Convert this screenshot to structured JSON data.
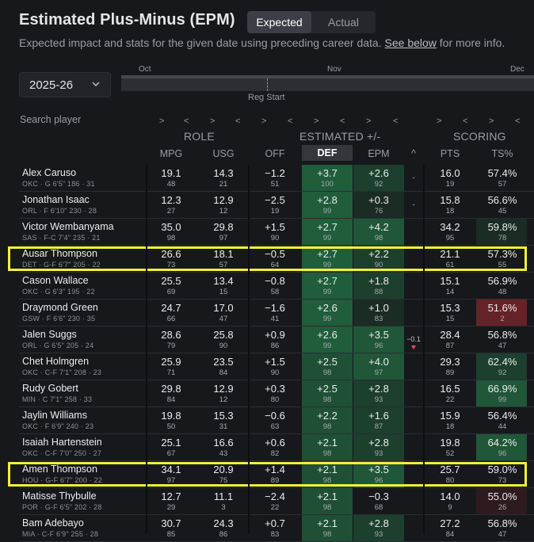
{
  "header": {
    "title": "Estimated Plus-Minus (EPM)",
    "toggle": [
      "Expected",
      "Actual"
    ],
    "subtitle_pre": "Expected impact and stats for the given date using preceding career data. ",
    "subtitle_link": "See below",
    "subtitle_post": " for more info."
  },
  "season": "2025-26",
  "timeline": {
    "months": [
      "Oct",
      "Nov",
      "Dec"
    ],
    "marker": "Reg Start"
  },
  "search_placeholder": "Search player",
  "groups": {
    "role": "ROLE",
    "est": "ESTIMATED +/-",
    "scoring": "SCORING"
  },
  "columns": {
    "mpg": "MPG",
    "usg": "USG",
    "off": "OFF",
    "def": "DEF",
    "epm": "EPM",
    "chg": "^",
    "pts": "PTS",
    "ts": "TS%"
  },
  "nav": {
    "next": ">",
    "prev": "<"
  },
  "rows": [
    {
      "name": "Alex Caruso",
      "info": "OKC · G 6'5\" 186 · 31",
      "mpg": "19.1",
      "mpg_r": "48",
      "usg": "14.3",
      "usg_r": "21",
      "off": "−1.2",
      "off_r": "51",
      "def": "+3.7",
      "def_r": "100",
      "epm": "+2.6",
      "epm_r": "92",
      "chg": "-",
      "chg_dir": "",
      "pts": "16.0",
      "pts_r": "19",
      "ts": "57.4%",
      "ts_r": "57"
    },
    {
      "name": "Jonathan Isaac",
      "info": "ORL · F 6'10\" 230 · 28",
      "mpg": "12.3",
      "mpg_r": "27",
      "usg": "12.9",
      "usg_r": "12",
      "off": "−2.5",
      "off_r": "19",
      "def": "+2.8",
      "def_r": "99",
      "epm": "+0.3",
      "epm_r": "76",
      "chg": "-",
      "chg_dir": "",
      "pts": "15.8",
      "pts_r": "18",
      "ts": "56.6%",
      "ts_r": "45"
    },
    {
      "name": "Victor Wembanyama",
      "info": "SAS · F-C 7'4\" 235 · 21",
      "mpg": "35.0",
      "mpg_r": "98",
      "usg": "29.8",
      "usg_r": "97",
      "off": "+1.5",
      "off_r": "90",
      "def": "+2.7",
      "def_r": "99",
      "epm": "+4.2",
      "epm_r": "98",
      "chg": "",
      "chg_dir": "",
      "pts": "34.2",
      "pts_r": "95",
      "ts": "59.8%",
      "ts_r": "78"
    },
    {
      "name": "Ausar Thompson",
      "info": "DET · G-F 6'7\" 205 · 22",
      "mpg": "26.6",
      "mpg_r": "73",
      "usg": "18.1",
      "usg_r": "57",
      "off": "−0.5",
      "off_r": "64",
      "def": "+2.7",
      "def_r": "99",
      "epm": "+2.2",
      "epm_r": "90",
      "chg": "",
      "chg_dir": "",
      "pts": "21.1",
      "pts_r": "61",
      "ts": "57.3%",
      "ts_r": "55"
    },
    {
      "name": "Cason Wallace",
      "info": "OKC · G 6'3\" 195 · 22",
      "mpg": "25.5",
      "mpg_r": "69",
      "usg": "13.4",
      "usg_r": "15",
      "off": "−0.8",
      "off_r": "58",
      "def": "+2.7",
      "def_r": "99",
      "epm": "+1.8",
      "epm_r": "88",
      "chg": "",
      "chg_dir": "",
      "pts": "15.1",
      "pts_r": "14",
      "ts": "56.9%",
      "ts_r": "48"
    },
    {
      "name": "Draymond Green",
      "info": "GSW · F 6'6\" 230 · 35",
      "mpg": "24.7",
      "mpg_r": "66",
      "usg": "17.0",
      "usg_r": "47",
      "off": "−1.6",
      "off_r": "41",
      "def": "+2.6",
      "def_r": "99",
      "epm": "+1.0",
      "epm_r": "83",
      "chg": "",
      "chg_dir": "",
      "pts": "15.3",
      "pts_r": "15",
      "ts": "51.6%",
      "ts_r": "2"
    },
    {
      "name": "Jalen Suggs",
      "info": "ORL · G 6'5\" 205 · 24",
      "mpg": "28.6",
      "mpg_r": "79",
      "usg": "25.8",
      "usg_r": "90",
      "off": "+0.9",
      "off_r": "86",
      "def": "+2.6",
      "def_r": "99",
      "epm": "+3.5",
      "epm_r": "96",
      "chg": "−0.1",
      "chg_dir": "down",
      "pts": "28.4",
      "pts_r": "87",
      "ts": "56.8%",
      "ts_r": "47"
    },
    {
      "name": "Chet Holmgren",
      "info": "OKC · C-F 7'1\" 208 · 23",
      "mpg": "25.9",
      "mpg_r": "71",
      "usg": "23.5",
      "usg_r": "84",
      "off": "+1.5",
      "off_r": "90",
      "def": "+2.5",
      "def_r": "98",
      "epm": "+4.0",
      "epm_r": "97",
      "chg": "",
      "chg_dir": "",
      "pts": "29.3",
      "pts_r": "89",
      "ts": "62.4%",
      "ts_r": "92"
    },
    {
      "name": "Rudy Gobert",
      "info": "MIN · C 7'1\" 258 · 33",
      "mpg": "29.8",
      "mpg_r": "84",
      "usg": "12.9",
      "usg_r": "12",
      "off": "+0.3",
      "off_r": "80",
      "def": "+2.5",
      "def_r": "98",
      "epm": "+2.8",
      "epm_r": "93",
      "chg": "",
      "chg_dir": "",
      "pts": "16.5",
      "pts_r": "22",
      "ts": "66.9%",
      "ts_r": "99"
    },
    {
      "name": "Jaylin Williams",
      "info": "OKC · F 6'9\" 240 · 23",
      "mpg": "19.8",
      "mpg_r": "50",
      "usg": "15.3",
      "usg_r": "31",
      "off": "−0.6",
      "off_r": "63",
      "def": "+2.2",
      "def_r": "98",
      "epm": "+1.6",
      "epm_r": "87",
      "chg": "",
      "chg_dir": "",
      "pts": "15.9",
      "pts_r": "18",
      "ts": "56.4%",
      "ts_r": "44"
    },
    {
      "name": "Isaiah Hartenstein",
      "info": "OKC · C-F 7'0\" 250 · 27",
      "mpg": "25.1",
      "mpg_r": "67",
      "usg": "16.6",
      "usg_r": "43",
      "off": "+0.6",
      "off_r": "82",
      "def": "+2.1",
      "def_r": "98",
      "epm": "+2.8",
      "epm_r": "93",
      "chg": "",
      "chg_dir": "",
      "pts": "19.8",
      "pts_r": "52",
      "ts": "64.2%",
      "ts_r": "96"
    },
    {
      "name": "Amen Thompson",
      "info": "HOU · G-F 6'7\" 200 · 22",
      "mpg": "34.1",
      "mpg_r": "97",
      "usg": "20.9",
      "usg_r": "75",
      "off": "+1.4",
      "off_r": "89",
      "def": "+2.1",
      "def_r": "98",
      "epm": "+3.5",
      "epm_r": "96",
      "chg": "",
      "chg_dir": "",
      "pts": "25.7",
      "pts_r": "80",
      "ts": "59.0%",
      "ts_r": "73"
    },
    {
      "name": "Matisse Thybulle",
      "info": "POR · G-F 6'5\" 202 · 28",
      "mpg": "12.7",
      "mpg_r": "29",
      "usg": "11.1",
      "usg_r": "3",
      "off": "−2.4",
      "off_r": "22",
      "def": "+2.1",
      "def_r": "98",
      "epm": "−0.3",
      "epm_r": "68",
      "chg": "",
      "chg_dir": "",
      "pts": "14.0",
      "pts_r": "9",
      "ts": "55.0%",
      "ts_r": "26"
    },
    {
      "name": "Bam Adebayo",
      "info": "MIA · C-F 6'9\" 255 · 28",
      "mpg": "30.7",
      "mpg_r": "85",
      "usg": "24.3",
      "usg_r": "86",
      "off": "+0.7",
      "off_r": "83",
      "def": "+2.1",
      "def_r": "98",
      "epm": "+2.8",
      "epm_r": "93",
      "chg": "",
      "chg_dir": "",
      "pts": "27.2",
      "pts_r": "84",
      "ts": "56.8%",
      "ts_r": "47"
    }
  ],
  "highlighted_rows": [
    3,
    11
  ],
  "colors": {
    "highlight": "#f4ef3b",
    "good": "#1c5a3a",
    "bad": "#5a1e22",
    "bg": "#16181c"
  }
}
